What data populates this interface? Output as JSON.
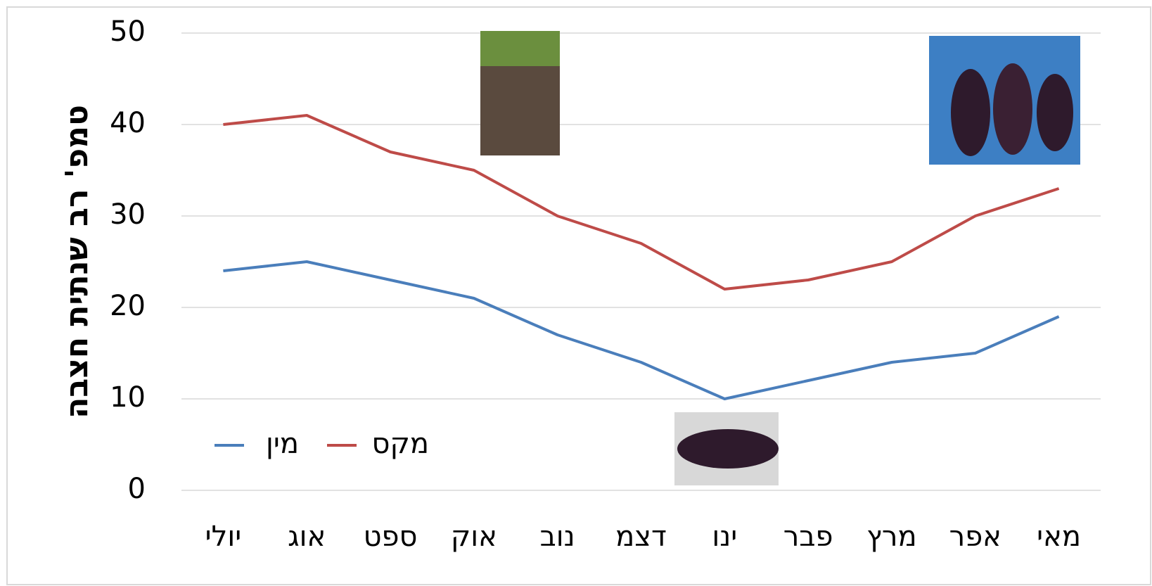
{
  "chart_data": {
    "type": "line",
    "y_label": "טמפ' רב שנתית חצבה",
    "categories": [
      "יולי",
      "אוג",
      "ספט",
      "אוק",
      "נוב",
      "דצמ",
      "ינו",
      "פבר",
      "מרץ",
      "אפר",
      "מאי"
    ],
    "series": [
      {
        "name": "מין",
        "color": "#4a7ebb",
        "values": [
          24,
          25,
          23,
          21,
          17,
          14,
          10,
          12,
          14,
          15,
          19
        ]
      },
      {
        "name": "מקס",
        "color": "#be4b48",
        "values": [
          40,
          41,
          37,
          35,
          30,
          27,
          22,
          23,
          25,
          30,
          33
        ]
      }
    ],
    "ylim": [
      0,
      50
    ],
    "yticks": [
      0,
      10,
      20,
      30,
      40,
      50
    ],
    "grid": true
  }
}
